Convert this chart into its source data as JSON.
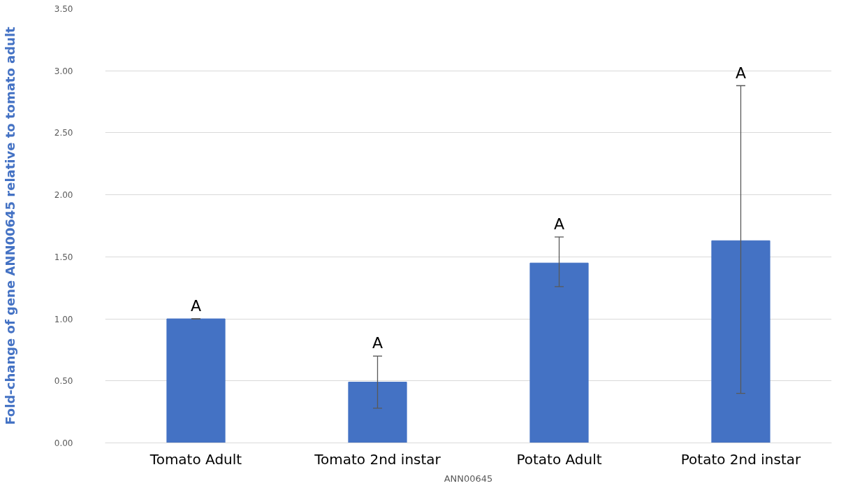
{
  "chart_data": {
    "type": "bar",
    "categories": [
      "Tomato Adult",
      "Tomato 2nd instar",
      "Potato Adult",
      "Potato 2nd instar"
    ],
    "values": [
      1.0,
      0.49,
      1.45,
      1.63
    ],
    "errors": [
      0,
      [
        0.28,
        0.7
      ],
      [
        1.26,
        1.66
      ],
      [
        0.4,
        2.88
      ]
    ],
    "color": "#4472c4",
    "xlabel": "ANN00645",
    "ylabel": "Fold-change of gene ANN00645 relative to tomato adult",
    "ylim": [
      0,
      3.5
    ],
    "yticks": [
      {
        "value": 0,
        "label": "0.00"
      },
      {
        "value": 0.5,
        "label": "0.50"
      },
      {
        "value": 1,
        "label": "1.00"
      },
      {
        "value": 1.5,
        "label": "1.50"
      },
      {
        "value": 2,
        "label": "2.00"
      },
      {
        "value": 2.5,
        "label": "2.50"
      },
      {
        "value": 3,
        "label": "3.00"
      },
      {
        "value": 3.5,
        "label": "3.50"
      }
    ],
    "grid": "y",
    "annotations": [
      "A",
      "A",
      "A",
      "A"
    ]
  }
}
